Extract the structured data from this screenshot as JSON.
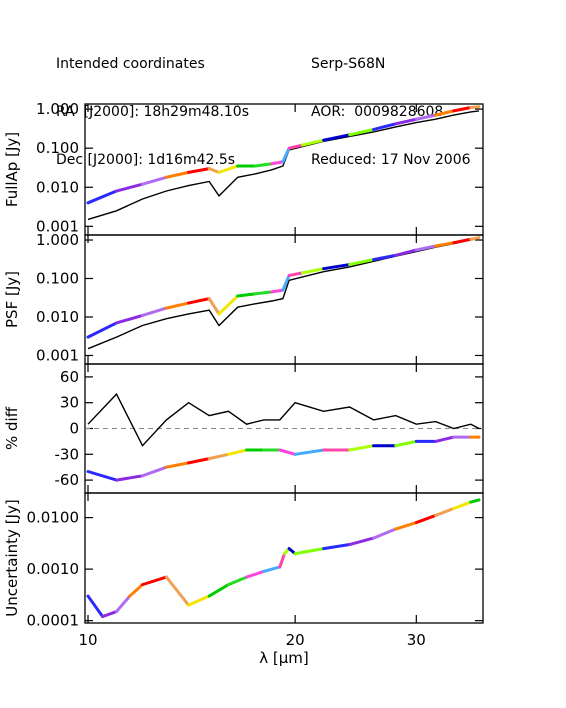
{
  "header": {
    "left": [
      "Intended coordinates",
      "RA  [J2000]: 18h29m48.10s",
      "Dec [J2000]: 1d16m42.5s"
    ],
    "right": [
      "Serp-S68N",
      "AOR:  0009828608",
      "Reduced: 17 Nov 2006"
    ]
  },
  "chart_data": {
    "type": "line",
    "x_axis": {
      "label": "λ [μm]",
      "scale": "log",
      "range": [
        9.9,
        37.5
      ],
      "ticks": [
        10,
        20,
        30
      ],
      "tick_labels": [
        "10",
        "20",
        "30"
      ]
    },
    "segment_colors": [
      "#2a2aff",
      "#8a2be2",
      "#b06cf0",
      "#ff7f00",
      "#ff0000",
      "#f0a050",
      "#f2e600",
      "#00cc00",
      "#22dd22",
      "#ff44dd",
      "#44aaff",
      "#ff44aa",
      "#aaff00",
      "#0000cc",
      "#7fff00"
    ],
    "panels": [
      {
        "id": "fullap",
        "ylabel": "FullAp [Jy]",
        "yscale": "log",
        "ylim": [
          0.0006,
          1.35
        ],
        "ticks": [
          0.001,
          0.01,
          0.1,
          1.0
        ],
        "tick_labels": [
          "0.001",
          "0.010",
          "0.100",
          "1.000"
        ],
        "series": [
          {
            "color": "#000000",
            "x": [
              10.0,
              11.0,
              12.0,
              13.0,
              14.0,
              15.0,
              15.5,
              16.5,
              17.5,
              18.5,
              19.2,
              19.6,
              20.5,
              22.0,
              24.0,
              26.0,
              28.0,
              30.0,
              32.0,
              34.0,
              36.0,
              37.0
            ],
            "y": [
              0.0015,
              0.0025,
              0.005,
              0.008,
              0.011,
              0.014,
              0.006,
              0.018,
              0.022,
              0.028,
              0.035,
              0.09,
              0.11,
              0.15,
              0.2,
              0.26,
              0.35,
              0.45,
              0.55,
              0.7,
              0.85,
              0.9
            ]
          },
          {
            "color": "segments",
            "x": [
              10.0,
              11.0,
              12.0,
              13.0,
              14.0,
              15.0,
              15.5,
              16.5,
              17.5,
              18.5,
              19.2,
              19.6,
              20.5,
              22.0,
              24.0,
              26.0,
              28.0,
              30.0,
              32.0,
              34.0,
              36.0,
              37.0
            ],
            "y": [
              0.004,
              0.008,
              0.012,
              0.018,
              0.024,
              0.03,
              0.024,
              0.035,
              0.035,
              0.04,
              0.045,
              0.1,
              0.12,
              0.16,
              0.22,
              0.3,
              0.42,
              0.55,
              0.7,
              0.9,
              1.1,
              1.15
            ]
          }
        ]
      },
      {
        "id": "psf",
        "ylabel": "PSF [Jy]",
        "yscale": "log",
        "ylim": [
          0.0006,
          1.35
        ],
        "ticks": [
          0.001,
          0.01,
          0.1,
          1.0
        ],
        "tick_labels": [
          "0.001",
          "0.010",
          "0.100",
          "1.000"
        ],
        "series": [
          {
            "color": "#000000",
            "x": [
              10.0,
              11.0,
              12.0,
              13.0,
              14.0,
              15.0,
              15.5,
              16.5,
              17.5,
              18.5,
              19.2,
              19.6,
              20.5,
              22.0,
              24.0,
              26.0,
              28.0,
              30.0,
              32.0,
              34.0,
              36.0,
              37.0
            ],
            "y": [
              0.0015,
              0.003,
              0.006,
              0.009,
              0.012,
              0.015,
              0.006,
              0.018,
              0.022,
              0.026,
              0.03,
              0.09,
              0.11,
              0.15,
              0.2,
              0.28,
              0.38,
              0.5,
              0.65,
              0.8,
              1.0,
              1.1
            ]
          },
          {
            "color": "segments",
            "x": [
              10.0,
              11.0,
              12.0,
              13.0,
              14.0,
              15.0,
              15.5,
              16.5,
              17.5,
              18.5,
              19.2,
              19.6,
              20.5,
              22.0,
              24.0,
              26.0,
              28.0,
              30.0,
              32.0,
              34.0,
              36.0,
              37.0
            ],
            "y": [
              0.003,
              0.007,
              0.011,
              0.017,
              0.023,
              0.03,
              0.012,
              0.035,
              0.04,
              0.045,
              0.05,
              0.12,
              0.14,
              0.18,
              0.23,
              0.31,
              0.4,
              0.55,
              0.7,
              0.85,
              1.05,
              1.15
            ]
          }
        ]
      },
      {
        "id": "diff",
        "ylabel": "% diff",
        "yscale": "linear",
        "ylim": [
          -75,
          75
        ],
        "ticks": [
          -60,
          -30,
          0,
          30,
          60
        ],
        "tick_labels": [
          "-60",
          "-30",
          "0",
          "30",
          "60"
        ],
        "zero_line": true,
        "series": [
          {
            "color": "#000000",
            "x": [
              10.0,
              11.0,
              12.0,
              13.0,
              14.0,
              15.0,
              16.0,
              17.0,
              18.0,
              19.0,
              20.0,
              22.0,
              24.0,
              26.0,
              28.0,
              30.0,
              32.0,
              34.0,
              36.0,
              37.0
            ],
            "y": [
              5,
              40,
              -20,
              10,
              30,
              15,
              20,
              5,
              10,
              10,
              30,
              20,
              25,
              10,
              15,
              5,
              8,
              0,
              5,
              0
            ]
          },
          {
            "color": "segments",
            "x": [
              10.0,
              11.0,
              12.0,
              13.0,
              14.0,
              15.0,
              16.0,
              17.0,
              18.0,
              19.0,
              20.0,
              22.0,
              24.0,
              26.0,
              28.0,
              30.0,
              32.0,
              34.0,
              36.0,
              37.0
            ],
            "y": [
              -50,
              -60,
              -55,
              -45,
              -40,
              -35,
              -30,
              -25,
              -25,
              -25,
              -30,
              -25,
              -25,
              -20,
              -20,
              -15,
              -15,
              -10,
              -10,
              -10
            ]
          }
        ]
      },
      {
        "id": "uncertainty",
        "ylabel": "Uncertainty [Jy]",
        "yscale": "log",
        "ylim": [
          9e-05,
          0.03
        ],
        "ticks": [
          0.0001,
          0.001,
          0.01
        ],
        "tick_labels": [
          "0.0001",
          "0.0010",
          "0.0100"
        ],
        "series": [
          {
            "color": "segments",
            "x": [
              10.0,
              10.5,
              11.0,
              11.5,
              12.0,
              13.0,
              14.0,
              15.0,
              16.0,
              17.0,
              18.0,
              19.0,
              19.3,
              19.6,
              20.0,
              22.0,
              24.0,
              26.0,
              28.0,
              30.0,
              32.0,
              34.0,
              36.0,
              37.0
            ],
            "y": [
              0.0003,
              0.00012,
              0.00015,
              0.0003,
              0.0005,
              0.0007,
              0.0002,
              0.0003,
              0.0005,
              0.0007,
              0.0009,
              0.0011,
              0.002,
              0.0025,
              0.002,
              0.0025,
              0.003,
              0.004,
              0.006,
              0.008,
              0.011,
              0.015,
              0.02,
              0.022
            ]
          }
        ]
      }
    ]
  }
}
